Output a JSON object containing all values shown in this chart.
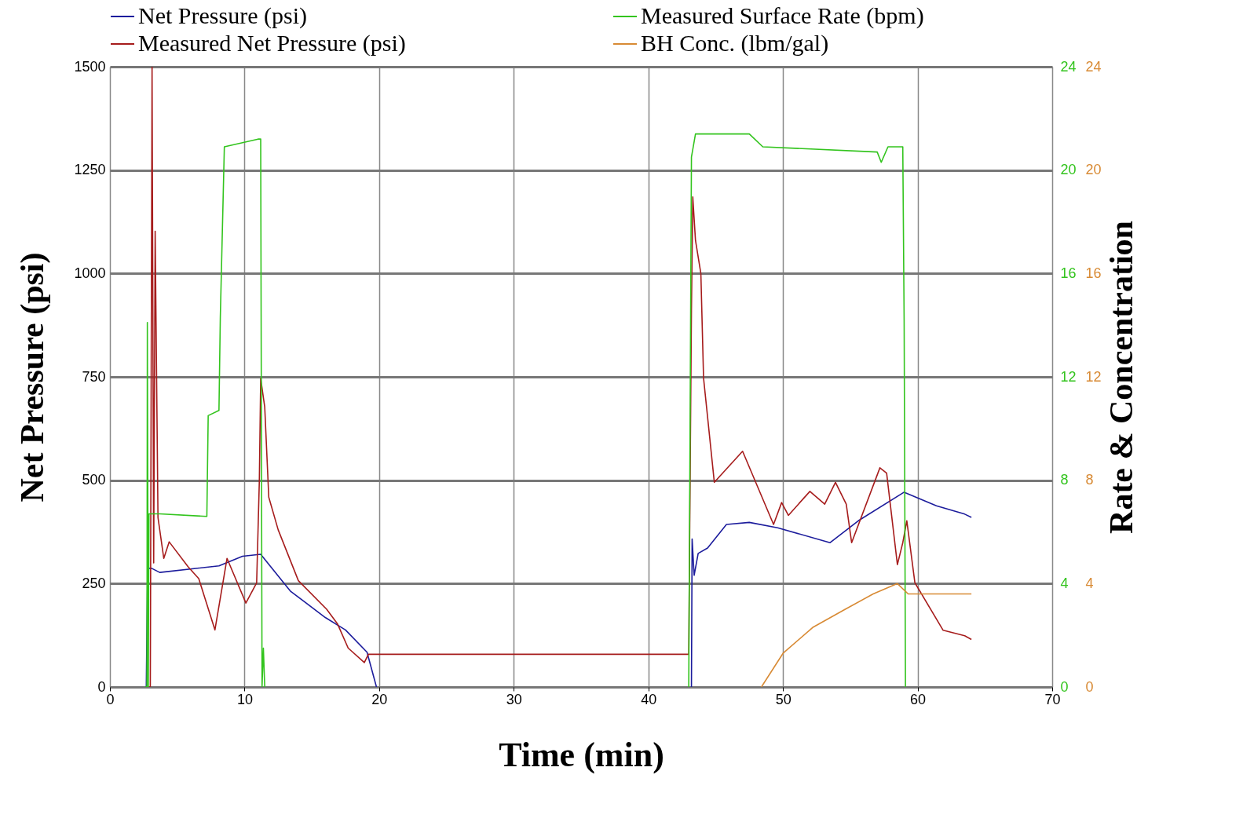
{
  "chart_data": {
    "type": "line",
    "xlabel": "Time (min)",
    "ylabel": "Net Pressure (psi)",
    "y2label": "Rate & Concentration",
    "xlim": [
      0,
      70
    ],
    "xticks": [
      0,
      10,
      20,
      30,
      40,
      50,
      60,
      70
    ],
    "ylim": [
      0,
      1500
    ],
    "yticks": [
      0,
      250,
      500,
      750,
      1000,
      1250,
      1500
    ],
    "y2lim": [
      0,
      24
    ],
    "y2ticks": [
      0,
      4,
      8,
      12,
      16,
      20,
      24
    ],
    "y3lim": [
      0,
      24
    ],
    "y3ticks": [
      0,
      4,
      8,
      12,
      16,
      20,
      24
    ],
    "grid": true,
    "legend": "top",
    "series": [
      {
        "name": "Net Pressure (psi)",
        "color": "#1c1c9c",
        "x": [
          2.7,
          2.8,
          3.1,
          3.7,
          8.1,
          9.85,
          11.2,
          13.4,
          16.0,
          17.5,
          19.1,
          19.8,
          30,
          43.2,
          43.25,
          43.4,
          43.7,
          44.4,
          45.8,
          47.5,
          49.6,
          53.5,
          55.6,
          59.0,
          61.4,
          63.5,
          64.0
        ],
        "values": [
          0,
          287,
          287,
          277,
          293,
          316,
          321,
          232,
          168,
          138,
          84,
          0,
          null,
          0,
          358,
          270,
          323,
          336,
          393,
          398,
          385,
          349,
          402,
          471,
          438,
          418,
          410
        ]
      },
      {
        "name": "Measured Surface Rate (bpm)",
        "color": "#33c41e",
        "axis": "y2",
        "x": [
          2.6,
          2.75,
          2.78,
          2.85,
          2.9,
          3.7,
          7.2,
          7.3,
          8.1,
          8.2,
          8.5,
          11.0,
          11.2,
          11.3,
          11.4,
          11.5,
          30,
          43.0,
          43.2,
          43.5,
          47.5,
          48.5,
          57.0,
          57.3,
          57.8,
          58.9,
          59.0,
          59.1
        ],
        "values": [
          0,
          0,
          14.1,
          0,
          6.7,
          6.7,
          6.6,
          10.5,
          10.7,
          14.3,
          20.9,
          21.2,
          21.2,
          0,
          1.5,
          0,
          null,
          0,
          20.5,
          21.4,
          21.4,
          20.9,
          20.7,
          20.3,
          20.9,
          20.9,
          14.2,
          0
        ]
      },
      {
        "name": "Measured Net Pressure (psi)",
        "color": "#a61c1c",
        "x": [
          2.8,
          3.0,
          3.13,
          3.25,
          3.36,
          3.57,
          4.0,
          4.4,
          5.8,
          6.6,
          7.8,
          8.7,
          10.1,
          10.9,
          11.1,
          11.2,
          11.5,
          11.8,
          12.5,
          14.0,
          16.1,
          16.9,
          17.7,
          18.9,
          19.2,
          43.0,
          43.2,
          43.3,
          43.5,
          43.9,
          44.1,
          44.9,
          47.0,
          49.3,
          49.9,
          50.4,
          52.0,
          53.1,
          53.9,
          54.7,
          55.1,
          57.2,
          57.7,
          58.5,
          58.9,
          59.2,
          59.8,
          61.9,
          63.5,
          64.0
        ],
        "values": [
          0,
          0,
          1500,
          300,
          1102,
          410,
          311,
          351,
          291,
          262,
          138,
          311,
          203,
          252,
          500,
          746,
          677,
          459,
          380,
          257,
          188,
          153,
          94,
          59,
          79,
          79,
          910,
          1185,
          1080,
          1000,
          747,
          495,
          570,
          393,
          446,
          415,
          473,
          442,
          495,
          442,
          349,
          530,
          517,
          296,
          349,
          402,
          252,
          137,
          124,
          115
        ]
      },
      {
        "name": "BH Conc. (lbm/gal)",
        "color": "#d88a34",
        "axis": "y3",
        "x": [
          48.4,
          50.0,
          52.2,
          54.6,
          56.7,
          58.5,
          59.3,
          64.0
        ],
        "values": [
          0,
          1.3,
          2.3,
          3.0,
          3.6,
          4.0,
          3.6,
          3.6
        ]
      }
    ]
  }
}
